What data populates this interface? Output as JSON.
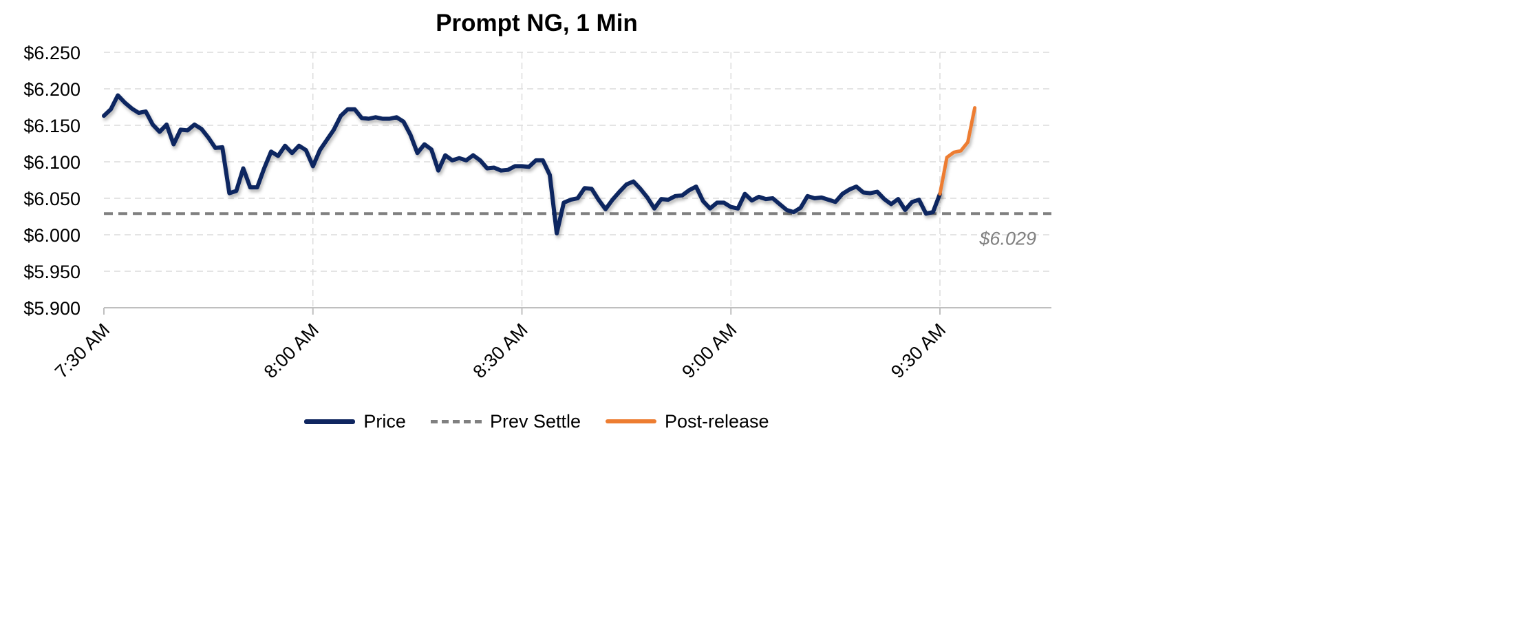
{
  "chart_data": {
    "type": "line",
    "title": "Prompt NG, 1 Min",
    "xlabel": "",
    "ylabel": "",
    "x_range_minutes": [
      0,
      136
    ],
    "x_ticks": [
      {
        "minute": 0,
        "label": "7:30 AM"
      },
      {
        "minute": 30,
        "label": "8:00 AM"
      },
      {
        "minute": 60,
        "label": "8:30 AM"
      },
      {
        "minute": 90,
        "label": "9:00 AM"
      },
      {
        "minute": 120,
        "label": "9:30 AM"
      }
    ],
    "ylim": [
      5.9,
      6.25
    ],
    "y_ticks": [
      "$5.900",
      "$5.950",
      "$6.000",
      "$6.050",
      "$6.100",
      "$6.150",
      "$6.200",
      "$6.250"
    ],
    "grid": true,
    "legend_position": "bottom",
    "series": [
      {
        "name": "Price",
        "color": "#0f2660",
        "style": "solid",
        "start_label": "7:30 AM",
        "values": [
          6.163,
          6.172,
          6.191,
          6.181,
          6.173,
          6.167,
          6.169,
          6.151,
          6.141,
          6.151,
          6.124,
          6.144,
          6.143,
          6.151,
          6.145,
          6.133,
          6.119,
          6.12,
          6.057,
          6.06,
          6.091,
          6.065,
          6.065,
          6.091,
          6.114,
          6.108,
          6.122,
          6.112,
          6.122,
          6.116,
          6.094,
          6.116,
          6.13,
          6.144,
          6.163,
          6.172,
          6.172,
          6.16,
          6.159,
          6.161,
          6.159,
          6.159,
          6.161,
          6.155,
          6.137,
          6.112,
          6.124,
          6.117,
          6.088,
          6.109,
          6.102,
          6.105,
          6.102,
          6.109,
          6.102,
          6.091,
          6.092,
          6.088,
          6.089,
          6.094,
          6.094,
          6.093,
          6.102,
          6.102,
          6.082,
          6.002,
          6.044,
          6.048,
          6.05,
          6.064,
          6.063,
          6.048,
          6.035,
          6.048,
          6.059,
          6.069,
          6.073,
          6.063,
          6.051,
          6.036,
          6.049,
          6.048,
          6.053,
          6.054,
          6.061,
          6.066,
          6.046,
          6.036,
          6.044,
          6.044,
          6.038,
          6.036,
          6.056,
          6.047,
          6.052,
          6.049,
          6.05,
          6.042,
          6.034,
          6.031,
          6.037,
          6.053,
          6.05,
          6.051,
          6.048,
          6.045,
          6.056,
          6.062,
          6.066,
          6.058,
          6.057,
          6.059,
          6.049,
          6.042,
          6.049,
          6.034,
          6.045,
          6.048,
          6.029,
          6.031,
          6.056
        ]
      },
      {
        "name": "Prev Settle",
        "color": "#808080",
        "style": "dashed",
        "value": 6.029,
        "value_label": "$6.029"
      },
      {
        "name": "Post-release",
        "color": "#ed7d31",
        "style": "solid",
        "start_label": "9:30 AM",
        "values": [
          6.056,
          6.106,
          6.113,
          6.115,
          6.127,
          6.174
        ]
      }
    ]
  }
}
